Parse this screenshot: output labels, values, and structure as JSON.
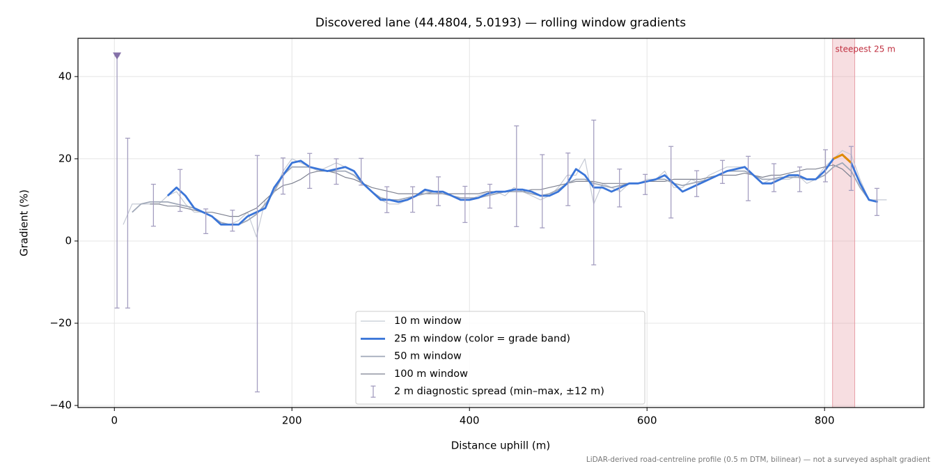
{
  "chart_data": {
    "type": "line",
    "title": "Discovered lane (44.4804, 5.0193) — rolling window gradients",
    "x_label": "Distance uphill (m)",
    "y_label": "Gradient (%)",
    "footnote": "LiDAR-derived road-centreline profile (0.5 m DTM, bilinear) — not a surveyed asphalt gradient",
    "xlim": [
      -41,
      912
    ],
    "ylim": [
      -40.5,
      49.3
    ],
    "xticks": [
      0,
      200,
      400,
      600,
      800
    ],
    "yticks": [
      {
        "value": -40,
        "label": "−40"
      },
      {
        "value": -20,
        "label": "−20"
      },
      0,
      20,
      40
    ],
    "grid": true,
    "legend": "lower center",
    "x": [
      0,
      10,
      20,
      30,
      40,
      50,
      60,
      70,
      80,
      90,
      100,
      110,
      120,
      130,
      140,
      150,
      160,
      170,
      180,
      190,
      200,
      210,
      220,
      230,
      240,
      250,
      260,
      270,
      280,
      290,
      300,
      310,
      320,
      330,
      340,
      350,
      360,
      370,
      380,
      390,
      400,
      410,
      420,
      430,
      440,
      450,
      460,
      470,
      480,
      490,
      500,
      510,
      520,
      530,
      540,
      550,
      560,
      570,
      580,
      590,
      600,
      610,
      620,
      630,
      640,
      650,
      660,
      670,
      680,
      690,
      700,
      710,
      720,
      730,
      740,
      750,
      760,
      770,
      780,
      790,
      800,
      810,
      820,
      830,
      840,
      850,
      860,
      870
    ],
    "series": [
      {
        "name": "10 m window",
        "color": "#c4c9d4",
        "width": 1.2,
        "values": [
          null,
          4,
          9,
          9,
          9,
          9,
          11,
          12,
          9,
          7,
          7,
          6,
          4,
          4,
          5,
          7,
          1,
          10,
          12,
          17,
          20,
          19,
          18,
          17,
          18,
          19,
          18,
          17,
          14,
          12,
          10,
          9,
          9,
          10,
          11,
          12,
          12,
          12,
          11,
          10,
          10,
          11,
          12,
          12,
          11,
          13,
          12,
          11,
          10,
          11,
          13,
          16,
          16,
          20,
          9,
          14,
          13,
          12,
          14,
          14,
          15,
          15,
          17,
          13,
          13,
          15,
          14,
          16,
          17,
          18,
          18,
          18,
          16,
          14,
          15,
          15,
          15,
          16,
          14,
          15,
          18,
          20,
          22,
          21,
          15,
          10,
          10,
          10
        ]
      },
      {
        "name": "25 m window (color = grade band)",
        "color": "#3a75d8",
        "width": 2.8,
        "values": [
          null,
          null,
          null,
          null,
          null,
          null,
          11,
          13,
          11,
          8,
          7,
          6,
          4,
          4,
          4,
          6,
          7,
          8,
          13,
          16,
          19,
          19.5,
          18,
          17.5,
          17,
          17.5,
          18,
          17,
          14,
          12,
          10,
          10,
          9.5,
          10,
          11,
          12.5,
          12,
          12,
          11,
          10,
          10,
          10.5,
          11.5,
          12,
          12,
          12.5,
          12.5,
          12,
          11,
          11,
          12,
          14,
          17.5,
          16,
          13,
          13,
          12,
          13,
          14,
          14,
          14.5,
          15,
          16,
          14,
          12,
          13,
          14,
          15,
          16,
          17,
          17.5,
          18,
          16,
          14,
          14,
          15,
          16,
          16,
          15,
          15,
          17,
          20,
          21,
          19,
          14,
          10,
          9.5,
          null
        ]
      },
      {
        "name": "50 m window",
        "color": "#a0a8b8",
        "width": 1.8,
        "values": [
          null,
          null,
          7,
          9,
          9.5,
          9.5,
          9.5,
          9,
          8.5,
          8,
          7,
          6,
          4.5,
          4,
          4,
          5,
          6.5,
          9,
          12,
          16,
          18,
          18,
          18,
          17.5,
          17,
          17,
          17,
          16,
          14,
          12,
          10.5,
          10,
          10,
          10.5,
          11,
          11.5,
          12,
          11.5,
          11,
          10.5,
          10.5,
          10.5,
          11,
          11.5,
          12,
          12,
          12,
          11.5,
          11,
          11.5,
          12.5,
          14,
          15,
          15,
          14,
          13.5,
          13,
          13.5,
          14,
          14,
          14.5,
          15,
          15,
          14,
          13.5,
          14,
          14.5,
          15,
          16,
          17,
          17,
          17,
          16,
          15,
          15,
          15.5,
          15.5,
          15.5,
          15,
          15,
          16,
          18,
          19,
          17,
          13,
          10,
          null,
          null
        ]
      },
      {
        "name": "100 m window",
        "color": "#7d8190",
        "width": 1.2,
        "values": [
          null,
          null,
          null,
          null,
          9,
          9,
          8.5,
          8.5,
          8,
          7.5,
          7,
          7,
          6.5,
          6,
          6,
          7,
          8,
          10,
          12,
          13.5,
          14,
          15,
          16.5,
          17,
          17,
          16.5,
          15.5,
          15,
          14,
          13,
          12.5,
          12,
          11.5,
          11.5,
          11.5,
          11.5,
          11.5,
          11.5,
          11.5,
          11.5,
          11.5,
          11.5,
          12,
          12,
          12,
          12,
          12,
          12.5,
          12.5,
          13,
          13.5,
          14,
          14.5,
          14.5,
          14.5,
          14,
          14,
          14,
          14,
          14,
          14.5,
          14.5,
          14.5,
          15,
          15,
          15,
          15,
          15.5,
          16,
          16,
          16,
          16.5,
          16,
          15.5,
          16,
          16,
          16.5,
          17,
          17.5,
          17.5,
          18,
          18.5,
          17.5,
          15.5,
          null,
          null,
          null,
          null
        ]
      }
    ],
    "highlight": {
      "label": "steepest 25 m",
      "span": [
        809,
        834
      ],
      "color": "#e8a0a8",
      "text_color": "#c03040",
      "line_color": "#e08a00"
    },
    "errorbars": {
      "name": "2 m diagnostic spread (min–max, ±12 m)",
      "color": "#a49ec0",
      "marker_color": "#8470a8",
      "clipped": [
        0
      ],
      "x": [
        3,
        15,
        44,
        74,
        103,
        133,
        161,
        190,
        220,
        250,
        278,
        307,
        336,
        365,
        395,
        423,
        453,
        482,
        511,
        540,
        569,
        598,
        627,
        656,
        685,
        714,
        743,
        772,
        801,
        830,
        859
      ],
      "low": [
        -16.3,
        -16.3,
        3.6,
        7.2,
        1.8,
        2.4,
        -36.7,
        11.4,
        12.8,
        13.8,
        13.6,
        6.9,
        7.0,
        8.6,
        4.5,
        8.0,
        3.5,
        3.2,
        8.6,
        -5.8,
        8.3,
        11.3,
        5.6,
        10.8,
        14.0,
        9.8,
        12.0,
        12.0,
        14.4,
        12.3,
        6.2
      ],
      "high": [
        45,
        25,
        13.8,
        17.4,
        7.8,
        7.5,
        20.8,
        20.2,
        21.3,
        20.0,
        20.1,
        13.2,
        13.2,
        15.6,
        13.3,
        13.8,
        28.0,
        21.0,
        21.4,
        29.4,
        17.5,
        16.2,
        23.0,
        17.1,
        19.6,
        20.6,
        18.8,
        18.0,
        22.2,
        23.0,
        12.8
      ]
    }
  }
}
